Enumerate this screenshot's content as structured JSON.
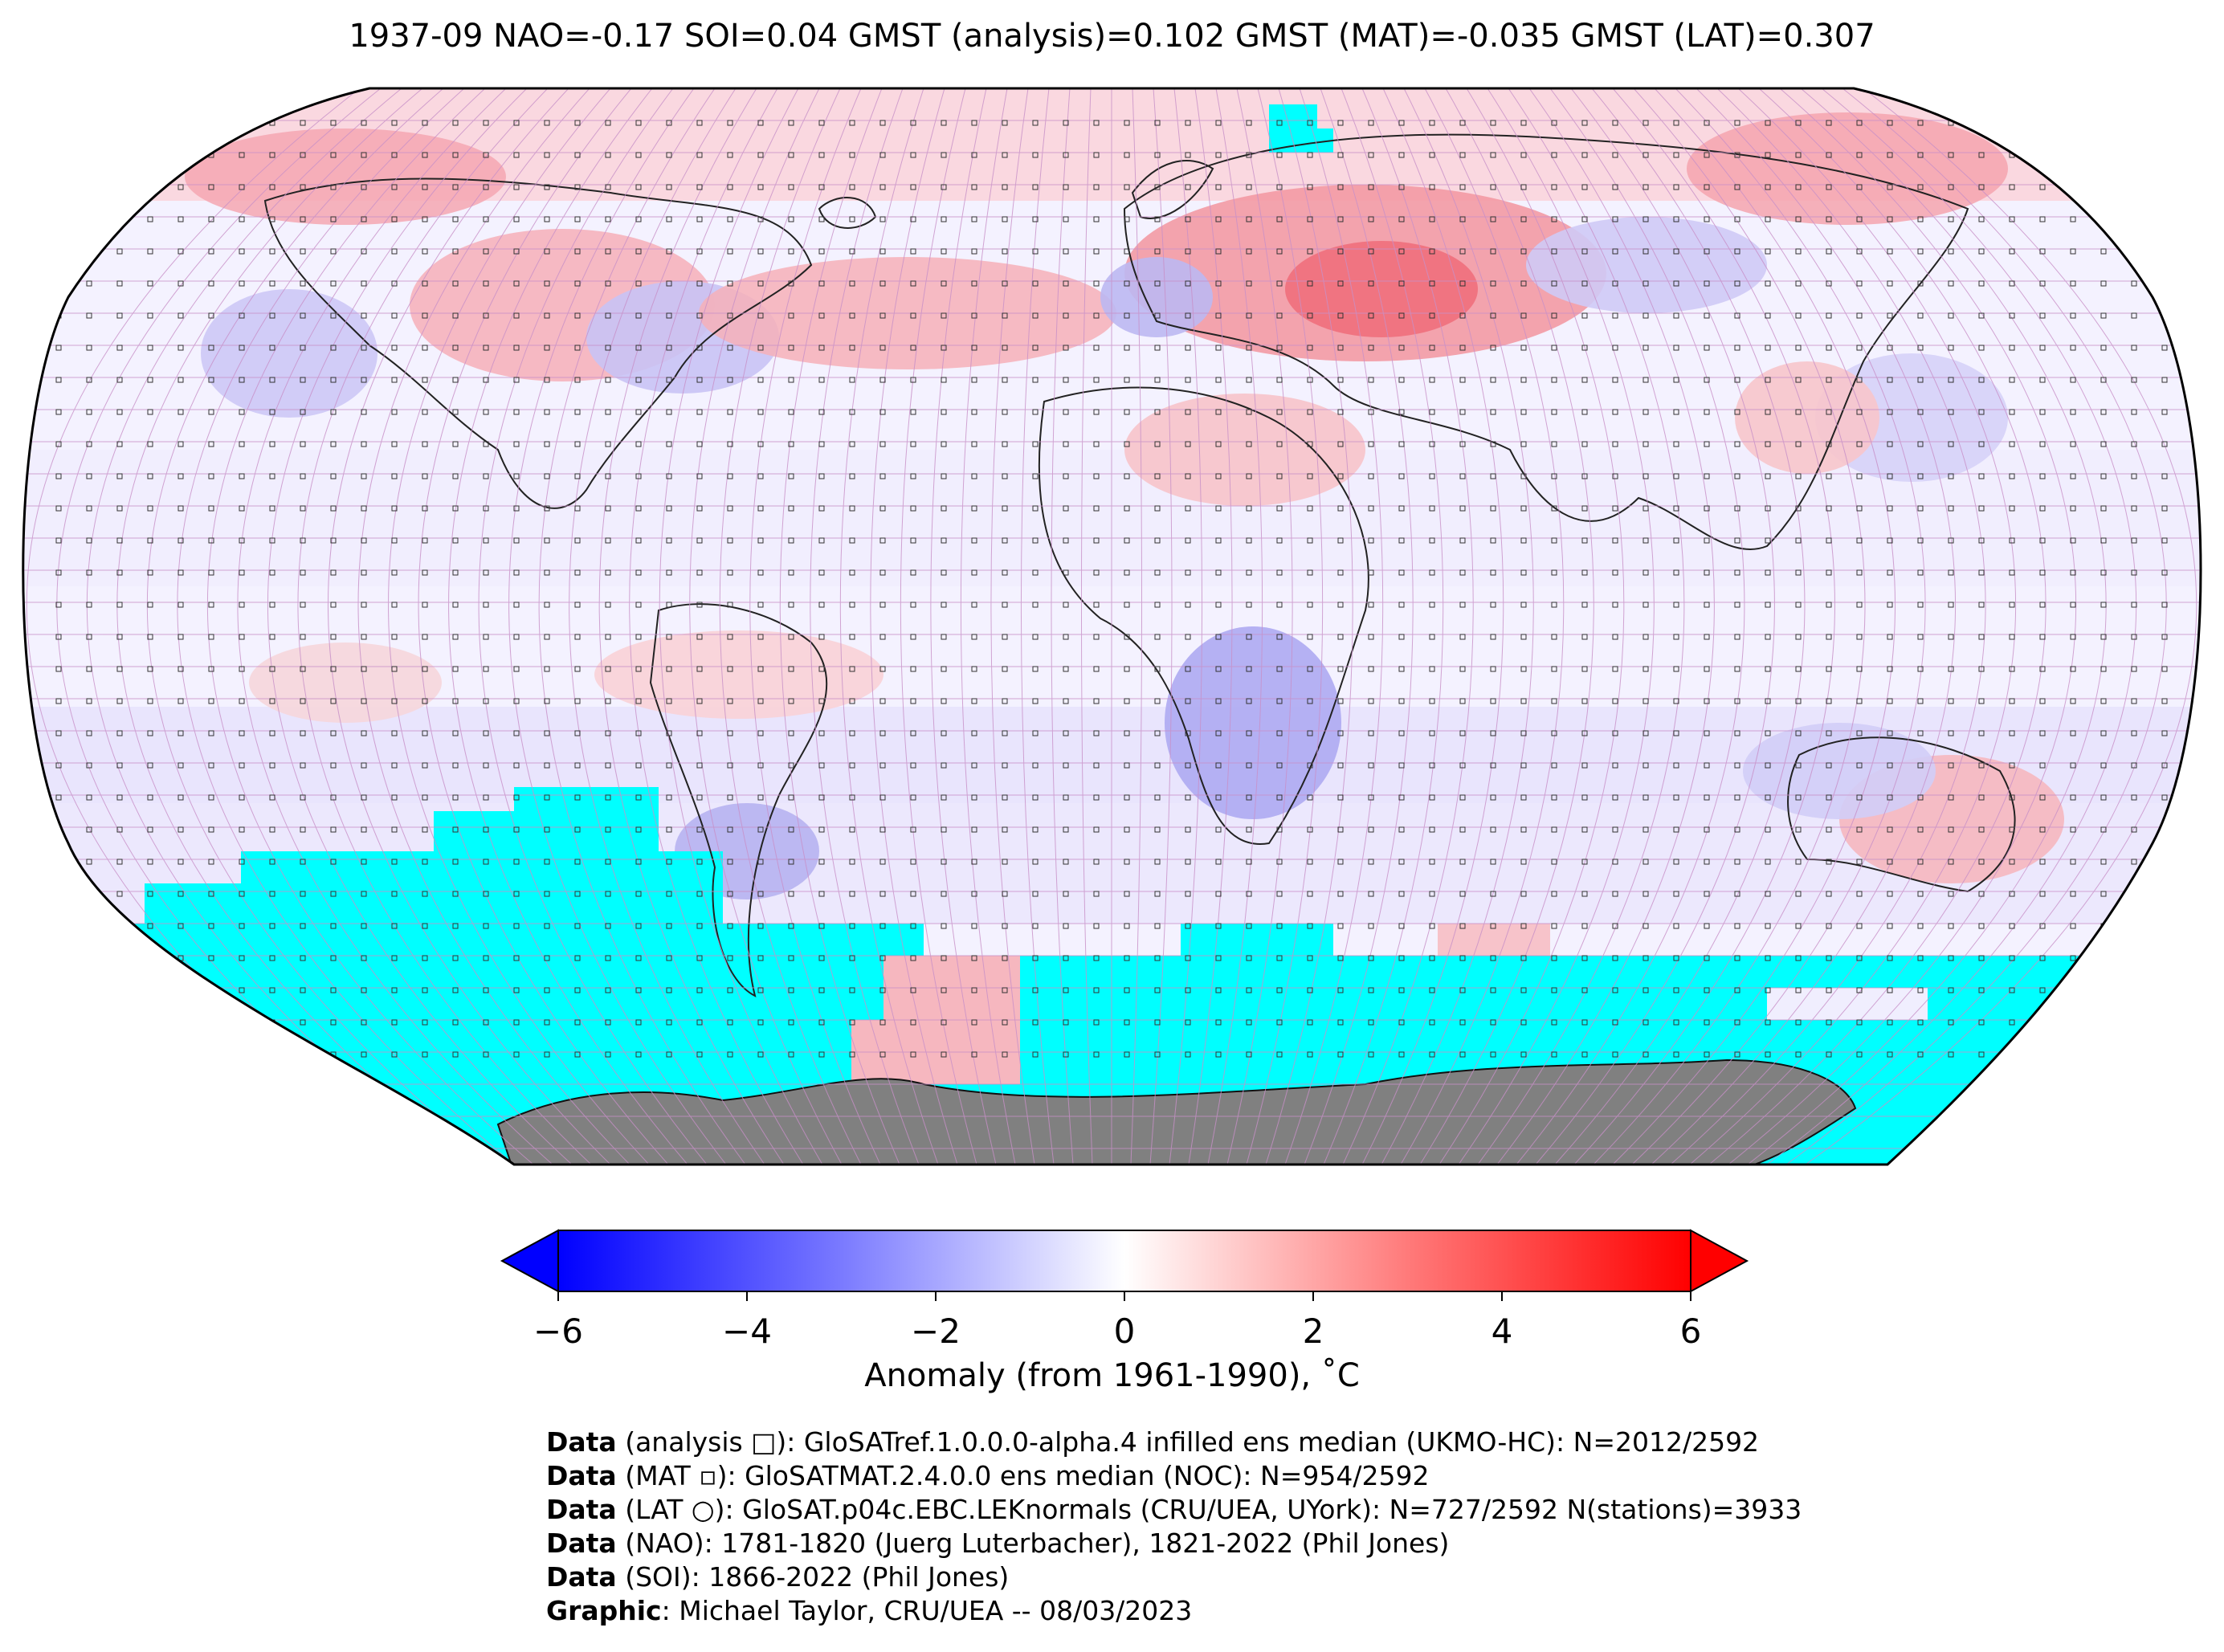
{
  "title": "1937-09 NAO=-0.17 SOI=0.04 GMST (analysis)=0.102 GMST (MAT)=-0.035 GMST (LAT)=0.307",
  "colorbar": {
    "ticks": [
      "−6",
      "−4",
      "−2",
      "0",
      "2",
      "4",
      "6"
    ],
    "tick_values": [
      -6,
      -4,
      -2,
      0,
      2,
      4,
      6
    ],
    "label": "Anomaly (from 1961-1990), ˚C",
    "min_color": "#0000ff",
    "mid_color": "#ffffff",
    "max_color": "#ff0000"
  },
  "map": {
    "projection": "Robinson",
    "no_data_color": "#00ffff",
    "land_mask_color": "#808080",
    "grid_color": "#c890c8"
  },
  "credits": [
    {
      "bold": "Data",
      "text": " (analysis □): GloSATref.1.0.0.0-alpha.4 infilled ens median (UKMO-HC): N=2012/2592"
    },
    {
      "bold": "Data",
      "text": " (MAT ▫): GloSATMAT.2.4.0.0 ens median (NOC): N=954/2592"
    },
    {
      "bold": "Data",
      "text": " (LAT ○): GloSAT.p04c.EBC.LEKnormals (CRU/UEA, UYork): N=727/2592 N(stations)=3933"
    },
    {
      "bold": "Data",
      "text": " (NAO): 1781-1820 (Juerg Luterbacher), 1821-2022 (Phil Jones)"
    },
    {
      "bold": "Data",
      "text": " (SOI): 1866-2022 (Phil Jones)"
    },
    {
      "bold": "Graphic",
      "text": ": Michael Taylor, CRU/UEA -- 08/03/2023"
    }
  ]
}
